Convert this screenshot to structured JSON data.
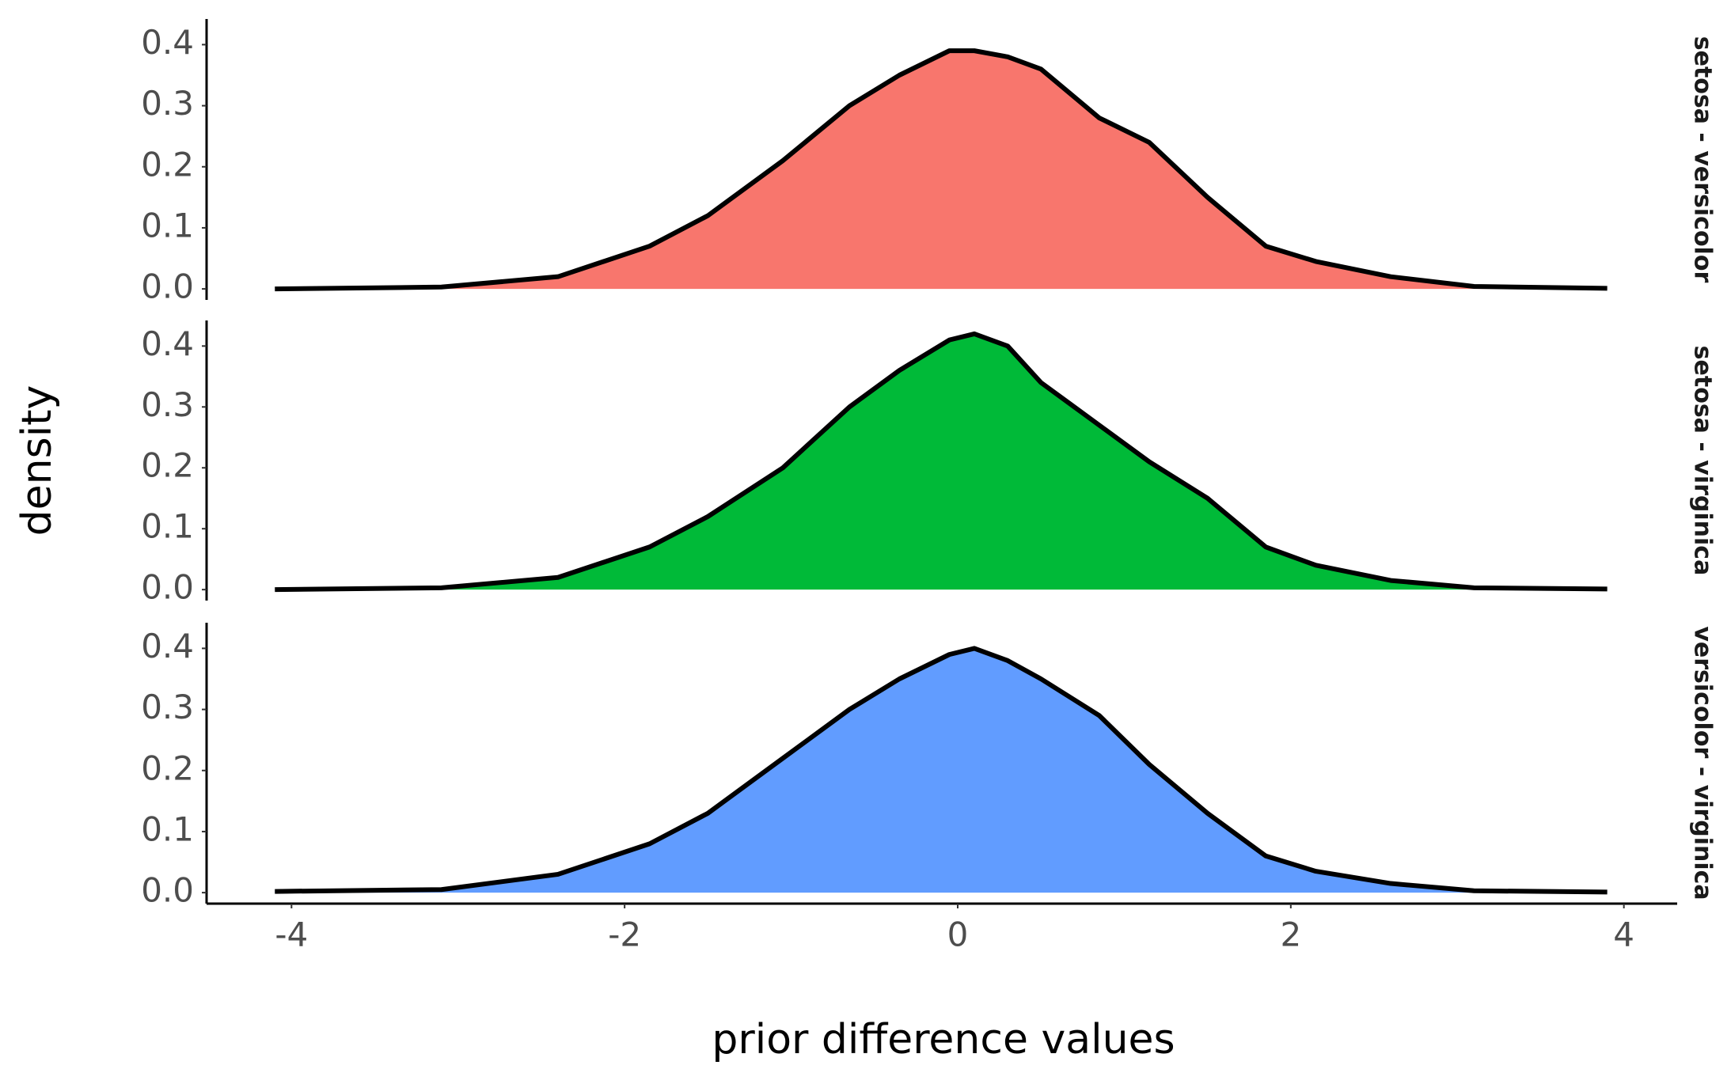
{
  "chart_data": {
    "type": "ridgeline-area",
    "x_label": "prior difference values",
    "y_label": "density",
    "x": [
      -4.1,
      -3.1,
      -2.4,
      -1.85,
      -1.5,
      -1.05,
      -0.65,
      -0.35,
      -0.05,
      0.1,
      0.3,
      0.5,
      0.85,
      1.15,
      1.5,
      1.85,
      2.15,
      2.6,
      3.1,
      3.9
    ],
    "series": [
      {
        "name": "setosa - versicolor",
        "color": "#F8766D",
        "values": [
          0.0,
          0.003,
          0.02,
          0.07,
          0.12,
          0.21,
          0.3,
          0.35,
          0.39,
          0.39,
          0.38,
          0.36,
          0.28,
          0.24,
          0.15,
          0.07,
          0.045,
          0.02,
          0.004,
          0.001
        ]
      },
      {
        "name": "setosa - virginica",
        "color": "#00BA38",
        "values": [
          0.0,
          0.003,
          0.02,
          0.07,
          0.12,
          0.2,
          0.3,
          0.36,
          0.41,
          0.42,
          0.4,
          0.34,
          0.27,
          0.21,
          0.15,
          0.07,
          0.04,
          0.015,
          0.003,
          0.001
        ]
      },
      {
        "name": "versicolor - virginica",
        "color": "#619CFF",
        "values": [
          0.002,
          0.005,
          0.03,
          0.08,
          0.13,
          0.22,
          0.3,
          0.35,
          0.39,
          0.4,
          0.38,
          0.35,
          0.29,
          0.21,
          0.13,
          0.06,
          0.035,
          0.015,
          0.003,
          0.001
        ]
      }
    ],
    "xlim": [
      -4.51,
      4.32
    ],
    "xticks": [
      -4,
      -2,
      0,
      2,
      4
    ],
    "ylim": [
      -0.018,
      0.442
    ],
    "yticks": [
      {
        "value": 0,
        "label": "0.0"
      },
      0.1,
      0.2,
      0.3,
      0.4
    ]
  }
}
